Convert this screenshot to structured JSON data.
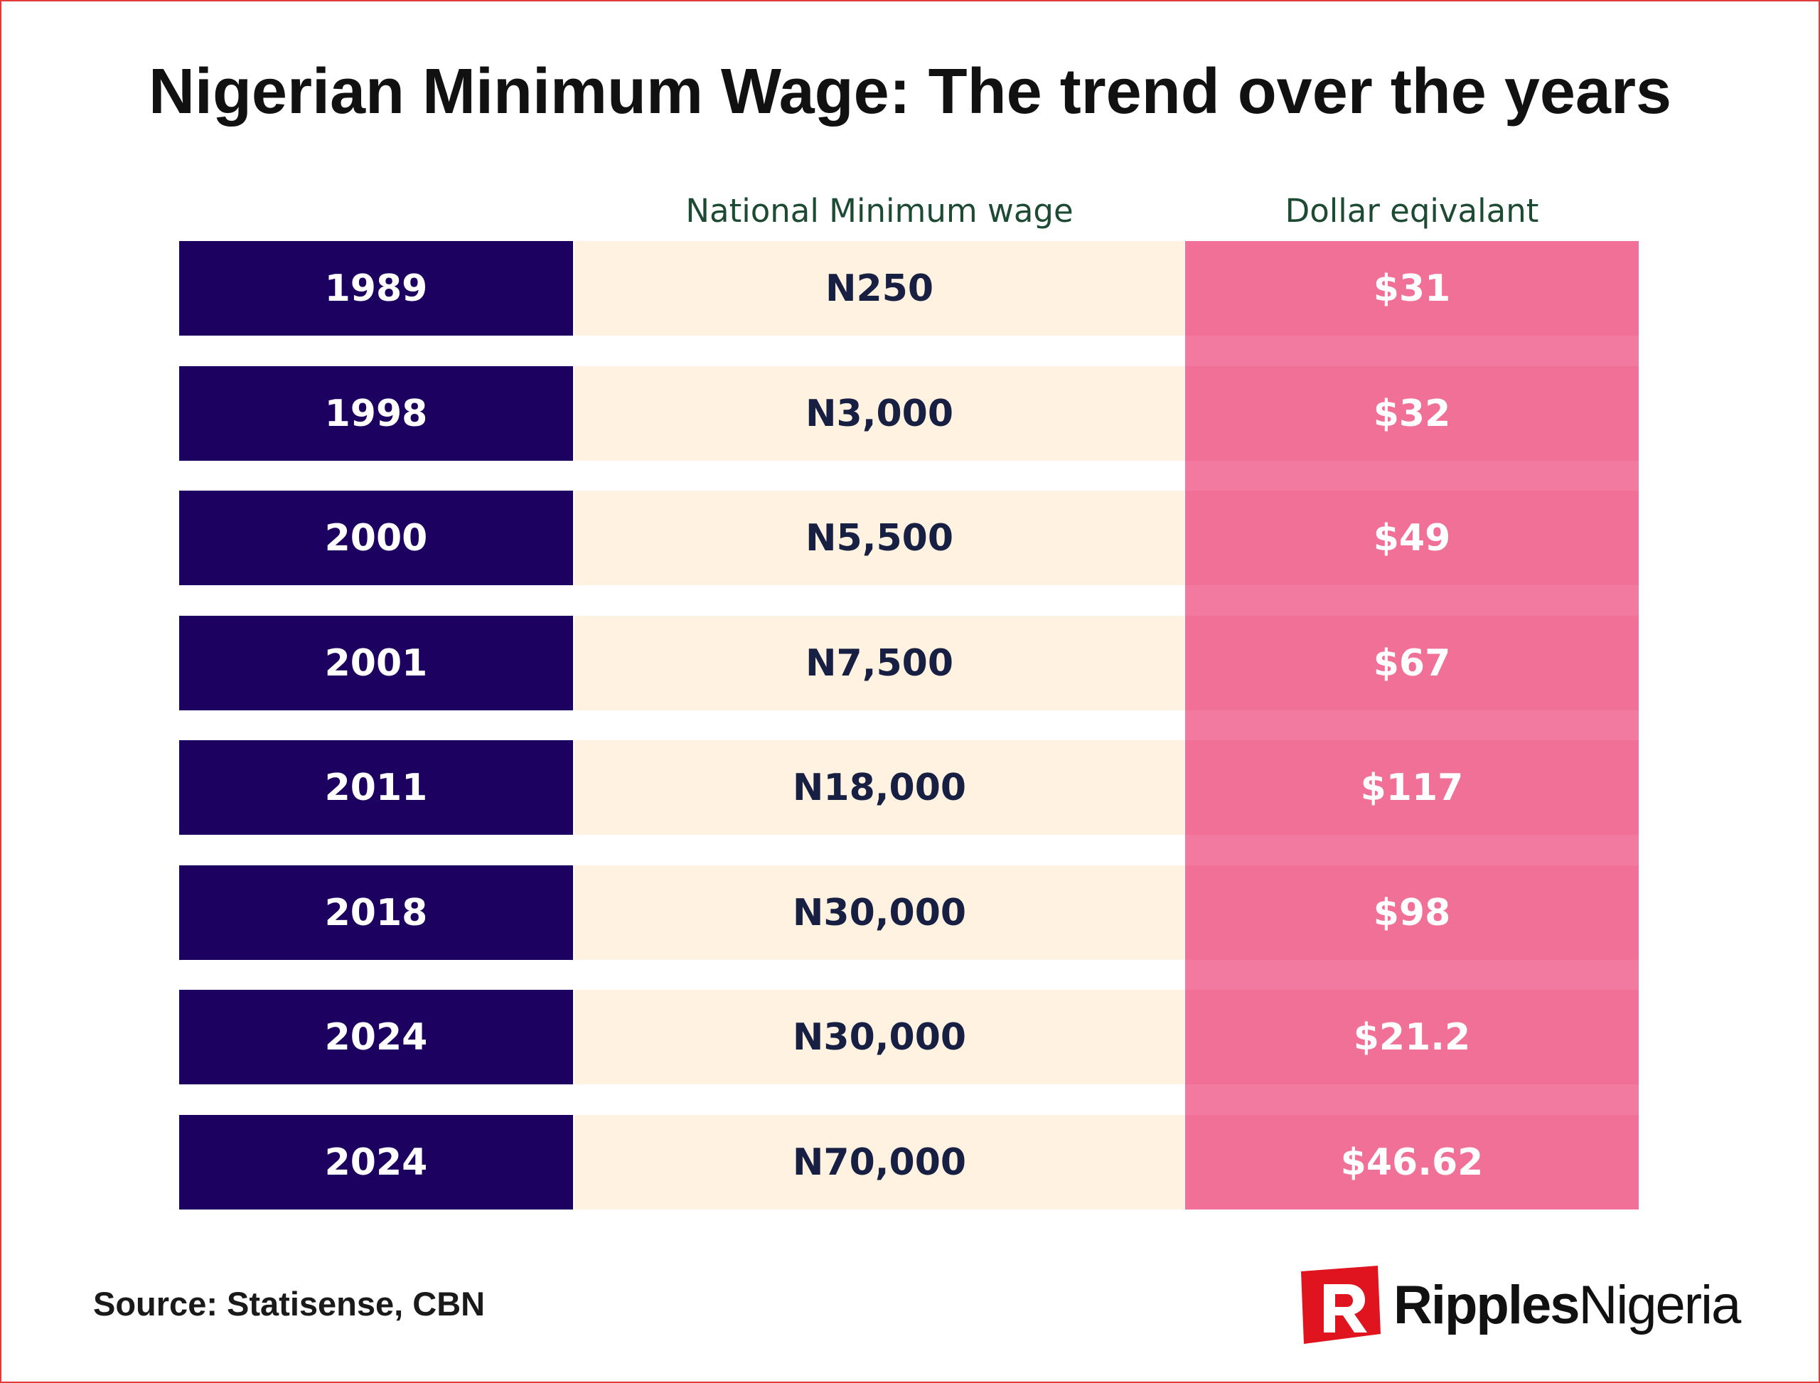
{
  "title": "Nigerian Minimum Wage: The trend over the years",
  "colors": {
    "year_bg": "#1c0160",
    "wage_bg": "#fff2e0",
    "usd_bg": "#f07097",
    "header_text": "#1d4a32",
    "border": "#e23b3b",
    "logo_red": "#e0141e"
  },
  "chart_data": {
    "type": "table",
    "title": "Nigerian Minimum Wage: The trend over the years",
    "columns": [
      "",
      "National Minimum wage",
      "Dollar eqivalant"
    ],
    "rows": [
      {
        "year": "1989",
        "wage": "N250",
        "usd": "$31"
      },
      {
        "year": "1998",
        "wage": "N3,000",
        "usd": "$32"
      },
      {
        "year": "2000",
        "wage": "N5,500",
        "usd": "$49"
      },
      {
        "year": "2001",
        "wage": "N7,500",
        "usd": "$67"
      },
      {
        "year": "2011",
        "wage": "N18,000",
        "usd": "$117"
      },
      {
        "year": "2018",
        "wage": "N30,000",
        "usd": "$98"
      },
      {
        "year": "2024",
        "wage": "N30,000",
        "usd": "$21.2"
      },
      {
        "year": "2024",
        "wage": "N70,000",
        "usd": "$46.62"
      }
    ]
  },
  "source": "Source: Statisense, CBN",
  "logo": {
    "bold": "Ripples",
    "light": "Nigeria"
  }
}
